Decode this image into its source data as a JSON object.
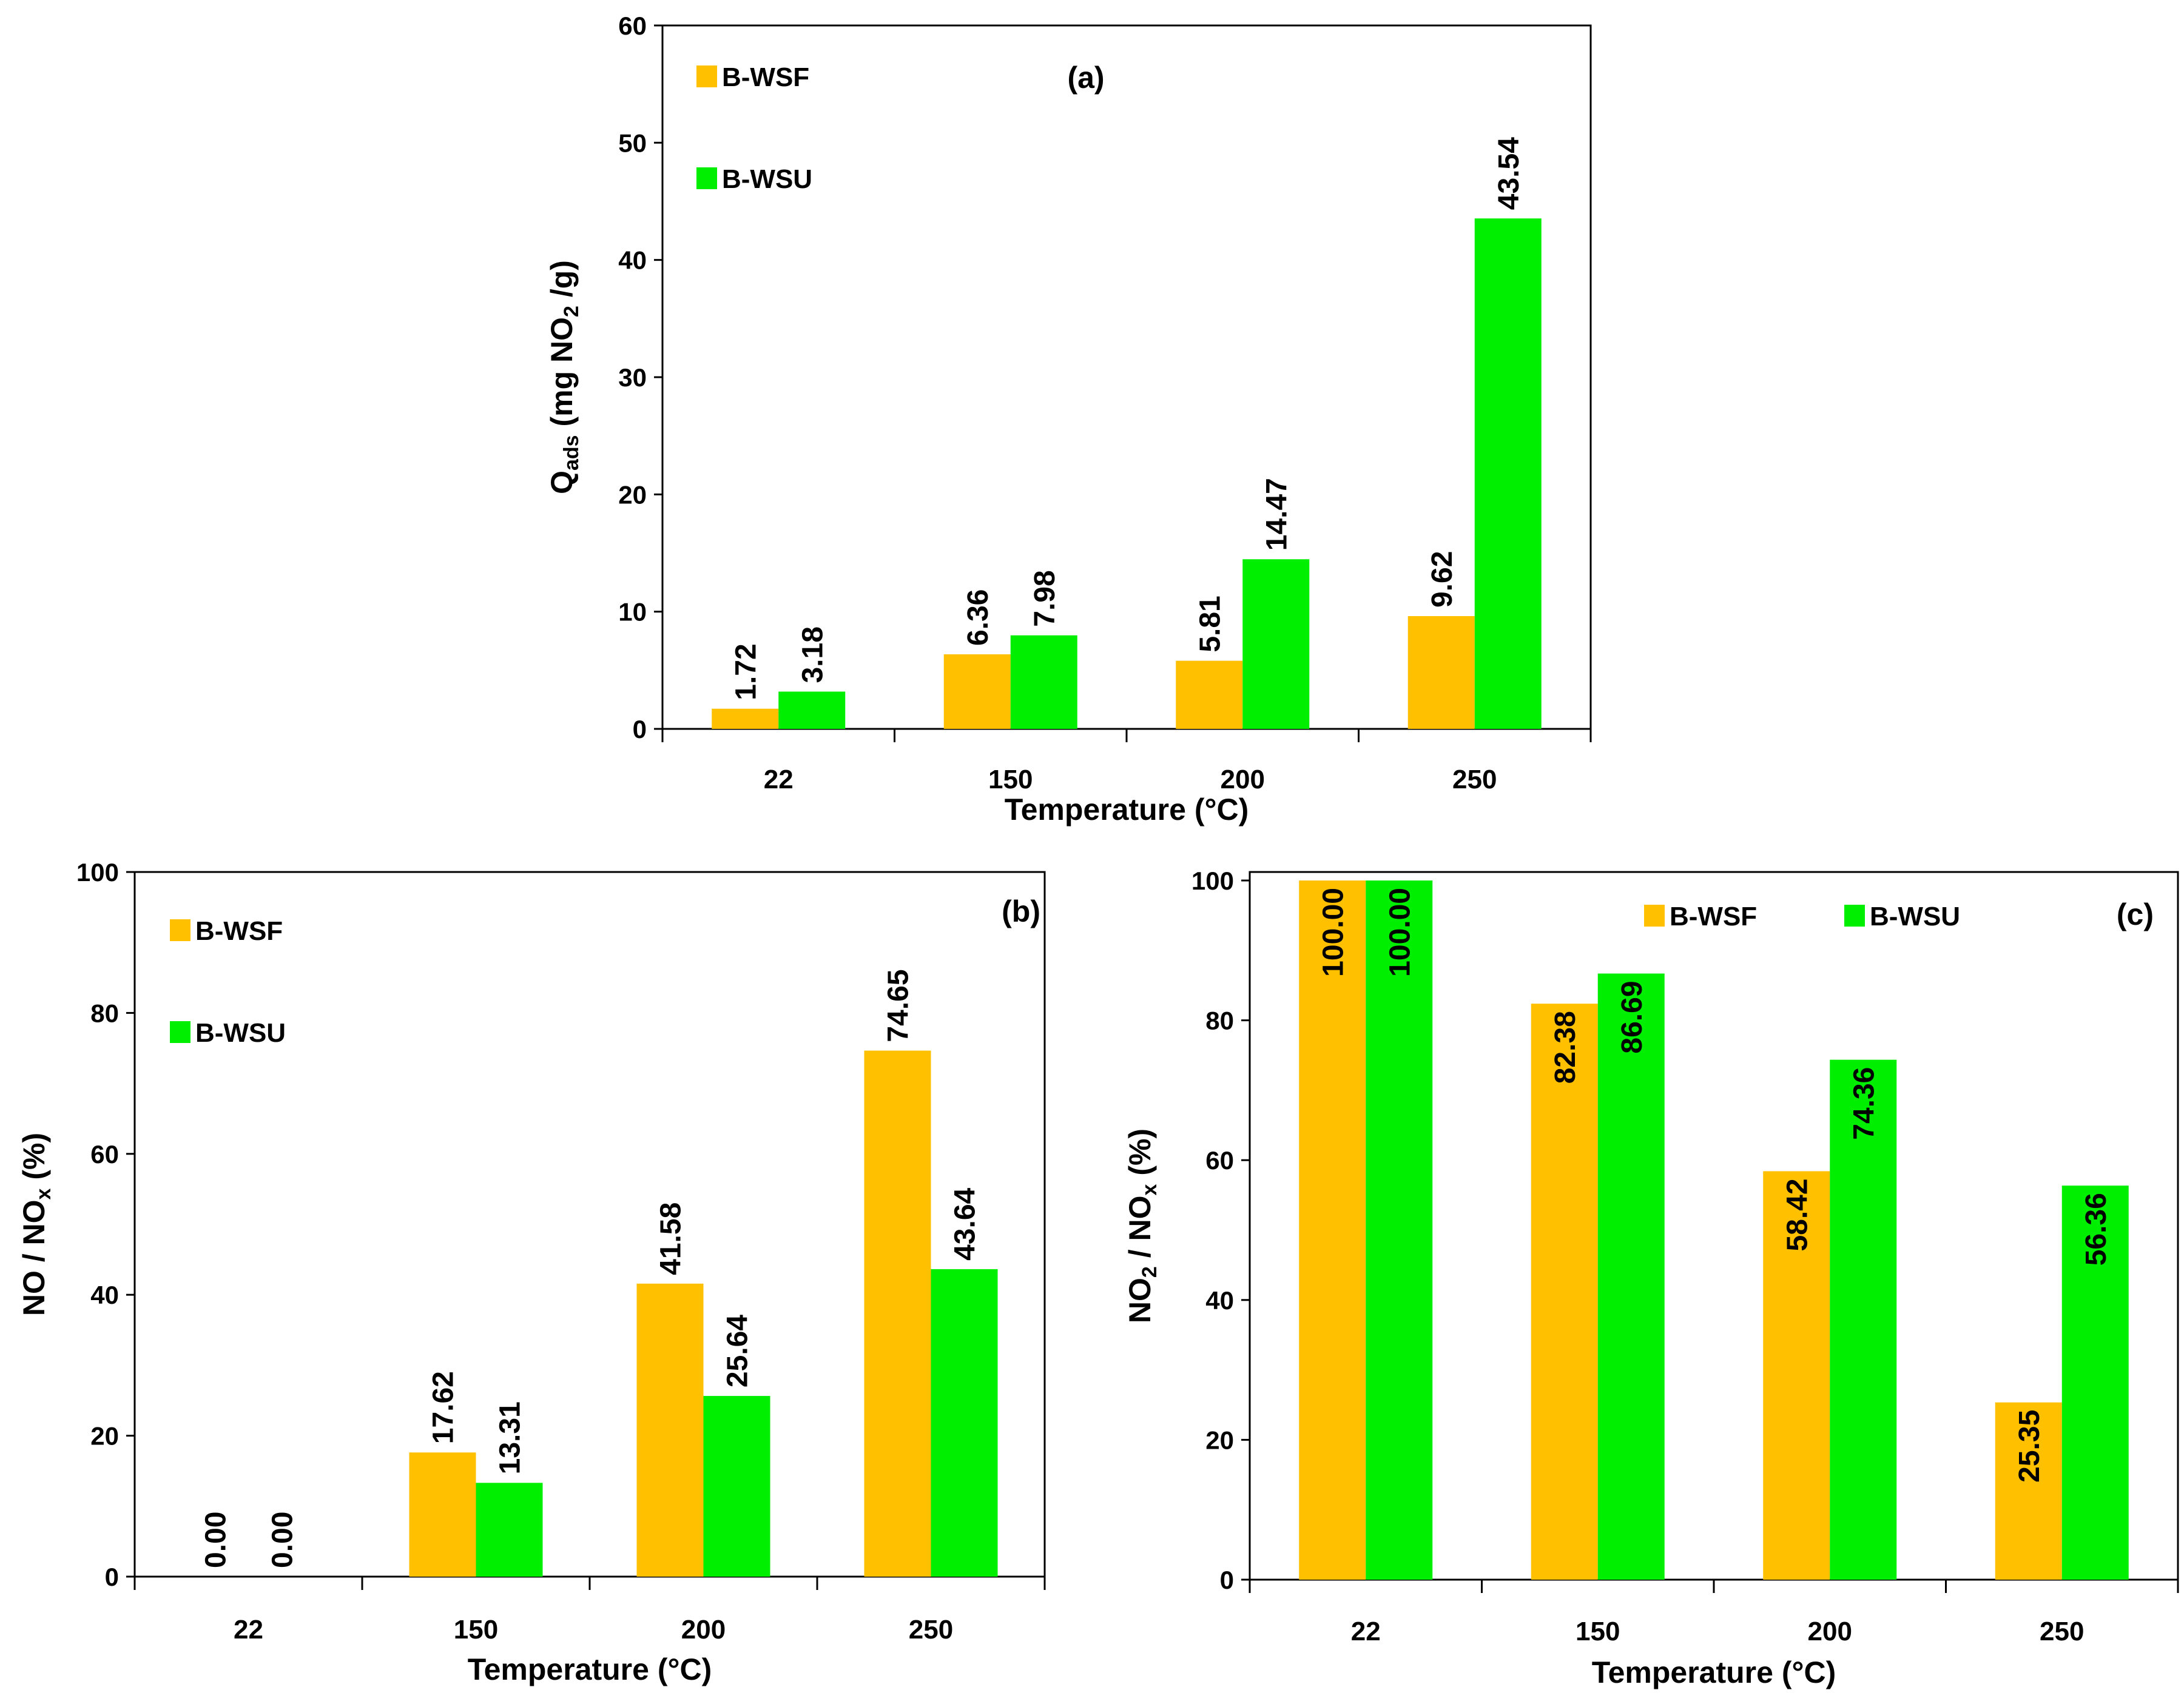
{
  "colors": {
    "B-WSF": "#FFC000",
    "B-WSU": "#00EE00"
  },
  "chart_data": [
    {
      "id": "a",
      "type": "bar",
      "panel_label": "(a)",
      "categories": [
        "22",
        "150",
        "200",
        "250"
      ],
      "series": [
        {
          "name": "B-WSF",
          "values": [
            1.72,
            6.36,
            5.81,
            9.62
          ],
          "labels": [
            "1.72",
            "6.36",
            "5.81",
            "9.62"
          ]
        },
        {
          "name": "B-WSU",
          "values": [
            3.18,
            7.98,
            14.47,
            43.54
          ],
          "labels": [
            "3.18",
            "7.98",
            "14.47",
            "43.54"
          ]
        }
      ],
      "ylim": [
        0,
        60
      ],
      "yticks": [
        "0",
        "10",
        "20",
        "30",
        "40",
        "50",
        "60"
      ],
      "xlabel": "Temperature (°C)",
      "ylabel": {
        "main": "Q",
        "sub": "ads",
        "rest": " (mg NO",
        "sub2": "2",
        "end": " /g)"
      },
      "legend_position": "top-left"
    },
    {
      "id": "b",
      "type": "bar",
      "panel_label": "(b)",
      "categories": [
        "22",
        "150",
        "200",
        "250"
      ],
      "series": [
        {
          "name": "B-WSF",
          "values": [
            0.0,
            17.62,
            41.58,
            74.65
          ],
          "labels": [
            "0.00",
            "17.62",
            "41.58",
            "74.65"
          ]
        },
        {
          "name": "B-WSU",
          "values": [
            0.0,
            13.31,
            25.64,
            43.64
          ],
          "labels": [
            "0.00",
            "13.31",
            "25.64",
            "43.64"
          ]
        }
      ],
      "ylim": [
        0,
        100
      ],
      "yticks": [
        "0",
        "20",
        "40",
        "60",
        "80",
        "100"
      ],
      "xlabel": "Temperature (°C)",
      "ylabel": {
        "main": "NO / NO",
        "sub": "x",
        "rest": " (%)"
      },
      "legend_position": "top-left"
    },
    {
      "id": "c",
      "type": "bar",
      "panel_label": "(c)",
      "categories": [
        "22",
        "150",
        "200",
        "250"
      ],
      "series": [
        {
          "name": "B-WSF",
          "values": [
            100.0,
            82.38,
            58.42,
            25.35
          ],
          "labels": [
            "100.00",
            "82.38",
            "58.42",
            "25.35"
          ]
        },
        {
          "name": "B-WSU",
          "values": [
            100.0,
            86.69,
            74.36,
            56.36
          ],
          "labels": [
            "100.00",
            "86.69",
            "74.36",
            "56.36"
          ]
        }
      ],
      "ylim": [
        0,
        100
      ],
      "yticks": [
        "0",
        "20",
        "40",
        "60",
        "80",
        "100"
      ],
      "xlabel": "Temperature (°C)",
      "ylabel": {
        "main": "NO",
        "sub": "2",
        "rest": " / NO",
        "sub2": "x",
        "end": " (%)"
      },
      "legend_position": "top-right"
    }
  ]
}
